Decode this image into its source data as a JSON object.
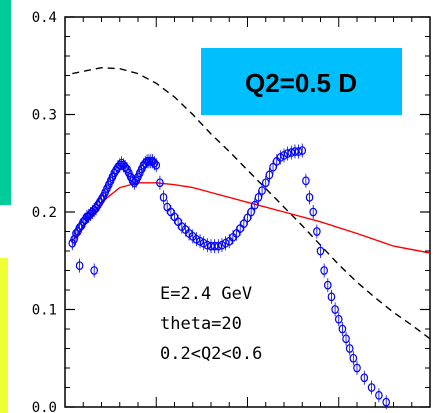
{
  "chart_data": {
    "type": "scatter",
    "title": "Q2=0.5 D",
    "xlabel": "",
    "ylabel": "",
    "x_tick_labels": [],
    "ylim": [
      0.0,
      0.4
    ],
    "xlim": [
      0.0,
      1.0
    ],
    "y_ticks": [
      0.0,
      0.1,
      0.2,
      0.3,
      0.4
    ],
    "y_tick_labels": [
      "0.0",
      "0.1",
      "0.2",
      "0.3",
      "0.4"
    ],
    "grid": false,
    "annotations": [
      "E=2.4 GeV",
      "theta=20",
      "0.2<Q2<0.6"
    ],
    "colors": {
      "points": "#0000ff",
      "model_curve": "#ff0000",
      "dashed_curve": "#000000",
      "title_box": "#00bfff",
      "left_bar_top": "#00cc99",
      "left_bar_bottom": "#eeff33"
    },
    "series": [
      {
        "style": "points",
        "x": [
          0.02,
          0.025,
          0.03,
          0.035,
          0.04,
          0.045,
          0.05,
          0.055,
          0.06,
          0.065,
          0.07,
          0.075,
          0.08,
          0.085,
          0.09,
          0.095,
          0.1,
          0.105,
          0.11,
          0.115,
          0.12,
          0.125,
          0.13,
          0.135,
          0.14,
          0.145,
          0.15,
          0.155,
          0.16,
          0.165,
          0.17,
          0.175,
          0.18,
          0.185,
          0.19,
          0.195,
          0.2,
          0.205,
          0.21,
          0.215,
          0.22,
          0.225,
          0.23,
          0.235,
          0.24,
          0.245,
          0.25,
          0.26,
          0.27,
          0.28,
          0.29,
          0.3,
          0.31,
          0.32,
          0.33,
          0.34,
          0.35,
          0.36,
          0.37,
          0.38,
          0.39,
          0.4,
          0.41,
          0.42,
          0.43,
          0.44,
          0.45,
          0.46,
          0.47,
          0.48,
          0.49,
          0.5,
          0.51,
          0.52,
          0.53,
          0.54,
          0.55,
          0.56,
          0.57,
          0.58,
          0.59,
          0.6,
          0.61,
          0.62,
          0.63,
          0.64,
          0.65,
          0.66,
          0.67,
          0.68,
          0.69,
          0.7,
          0.71,
          0.72,
          0.73,
          0.74,
          0.75,
          0.76,
          0.77,
          0.78,
          0.79,
          0.8,
          0.82,
          0.84,
          0.86,
          0.88,
          0.9,
          0.92,
          0.94,
          0.96,
          0.98,
          1.0
        ],
        "y": [
          0.168,
          0.172,
          0.178,
          0.18,
          0.184,
          0.186,
          0.19,
          0.192,
          0.195,
          0.196,
          0.198,
          0.2,
          0.202,
          0.204,
          0.207,
          0.21,
          0.213,
          0.216,
          0.22,
          0.224,
          0.228,
          0.232,
          0.236,
          0.24,
          0.243,
          0.246,
          0.248,
          0.25,
          0.248,
          0.246,
          0.244,
          0.24,
          0.236,
          0.232,
          0.23,
          0.232,
          0.236,
          0.24,
          0.244,
          0.248,
          0.25,
          0.252,
          0.252,
          0.252,
          0.252,
          0.25,
          0.248,
          0.23,
          0.215,
          0.205,
          0.2,
          0.195,
          0.19,
          0.185,
          0.182,
          0.178,
          0.175,
          0.172,
          0.17,
          0.168,
          0.166,
          0.165,
          0.165,
          0.165,
          0.166,
          0.168,
          0.17,
          0.174,
          0.178,
          0.183,
          0.188,
          0.194,
          0.2,
          0.207,
          0.215,
          0.222,
          0.23,
          0.238,
          0.246,
          0.252,
          0.256,
          0.258,
          0.26,
          0.261,
          0.262,
          0.262,
          0.263,
          0.232,
          0.215,
          0.2,
          0.18,
          0.16,
          0.14,
          0.125,
          0.113,
          0.1,
          0.09,
          0.08,
          0.07,
          0.06,
          0.05,
          0.04,
          0.03,
          0.02,
          0.012,
          0.005,
          0.0,
          0.0,
          0.0,
          0.0,
          0.0,
          0.0
        ],
        "extra_points": [
          {
            "x": 0.04,
            "y": 0.145
          },
          {
            "x": 0.08,
            "y": 0.14
          }
        ]
      },
      {
        "style": "solid",
        "x": [
          0.02,
          0.05,
          0.1,
          0.15,
          0.2,
          0.25,
          0.3,
          0.35,
          0.4,
          0.5,
          0.6,
          0.7,
          0.8,
          0.9,
          1.0
        ],
        "y": [
          0.17,
          0.185,
          0.21,
          0.225,
          0.23,
          0.23,
          0.228,
          0.225,
          0.22,
          0.21,
          0.2,
          0.19,
          0.178,
          0.165,
          0.158
        ]
      },
      {
        "style": "dashed",
        "x": [
          0.02,
          0.06,
          0.1,
          0.15,
          0.2,
          0.25,
          0.3,
          0.35,
          0.4,
          0.45,
          0.5,
          0.55,
          0.6,
          0.65,
          0.7,
          0.75,
          0.8,
          0.85,
          0.9,
          0.95,
          1.0
        ],
        "y": [
          0.342,
          0.345,
          0.348,
          0.347,
          0.342,
          0.332,
          0.318,
          0.3,
          0.28,
          0.262,
          0.243,
          0.224,
          0.205,
          0.186,
          0.166,
          0.146,
          0.128,
          0.112,
          0.097,
          0.084,
          0.07
        ]
      }
    ]
  }
}
